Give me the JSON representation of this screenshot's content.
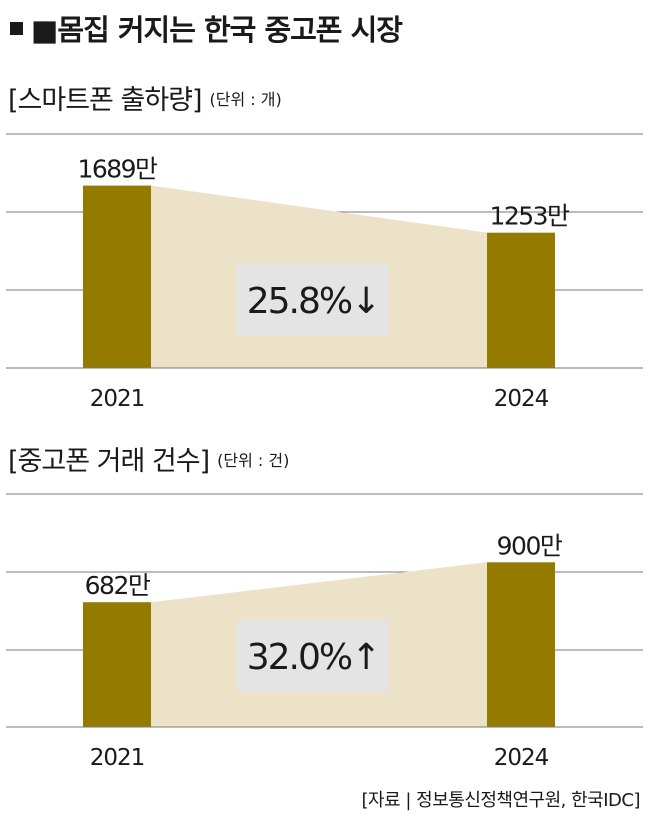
{
  "title": "■몸집 커지는 한국 중고폰 시장",
  "colors": {
    "bar": "#957a00",
    "band": "#ece2c8",
    "pct_box": "#e4e4e4",
    "grid": "#7a7a7a"
  },
  "chart_data": [
    {
      "type": "bar",
      "title": "[스마트폰 출하량]",
      "unit_label": "(단위 : 개)",
      "categories": [
        "2021",
        "2024"
      ],
      "values": [
        1689,
        1253
      ],
      "value_labels": [
        "1689만",
        "1253만"
      ],
      "change_label": "25.8%↓",
      "grid": true
    },
    {
      "type": "bar",
      "title": "[중고폰 거래 건수]",
      "unit_label": "(단위 : 건)",
      "categories": [
        "2021",
        "2024"
      ],
      "values": [
        682,
        900
      ],
      "value_labels": [
        "682만",
        "900만"
      ],
      "change_label": "32.0%↑",
      "grid": true
    }
  ],
  "source": "[자료 | 정보통신정책연구원, 한국IDC]"
}
